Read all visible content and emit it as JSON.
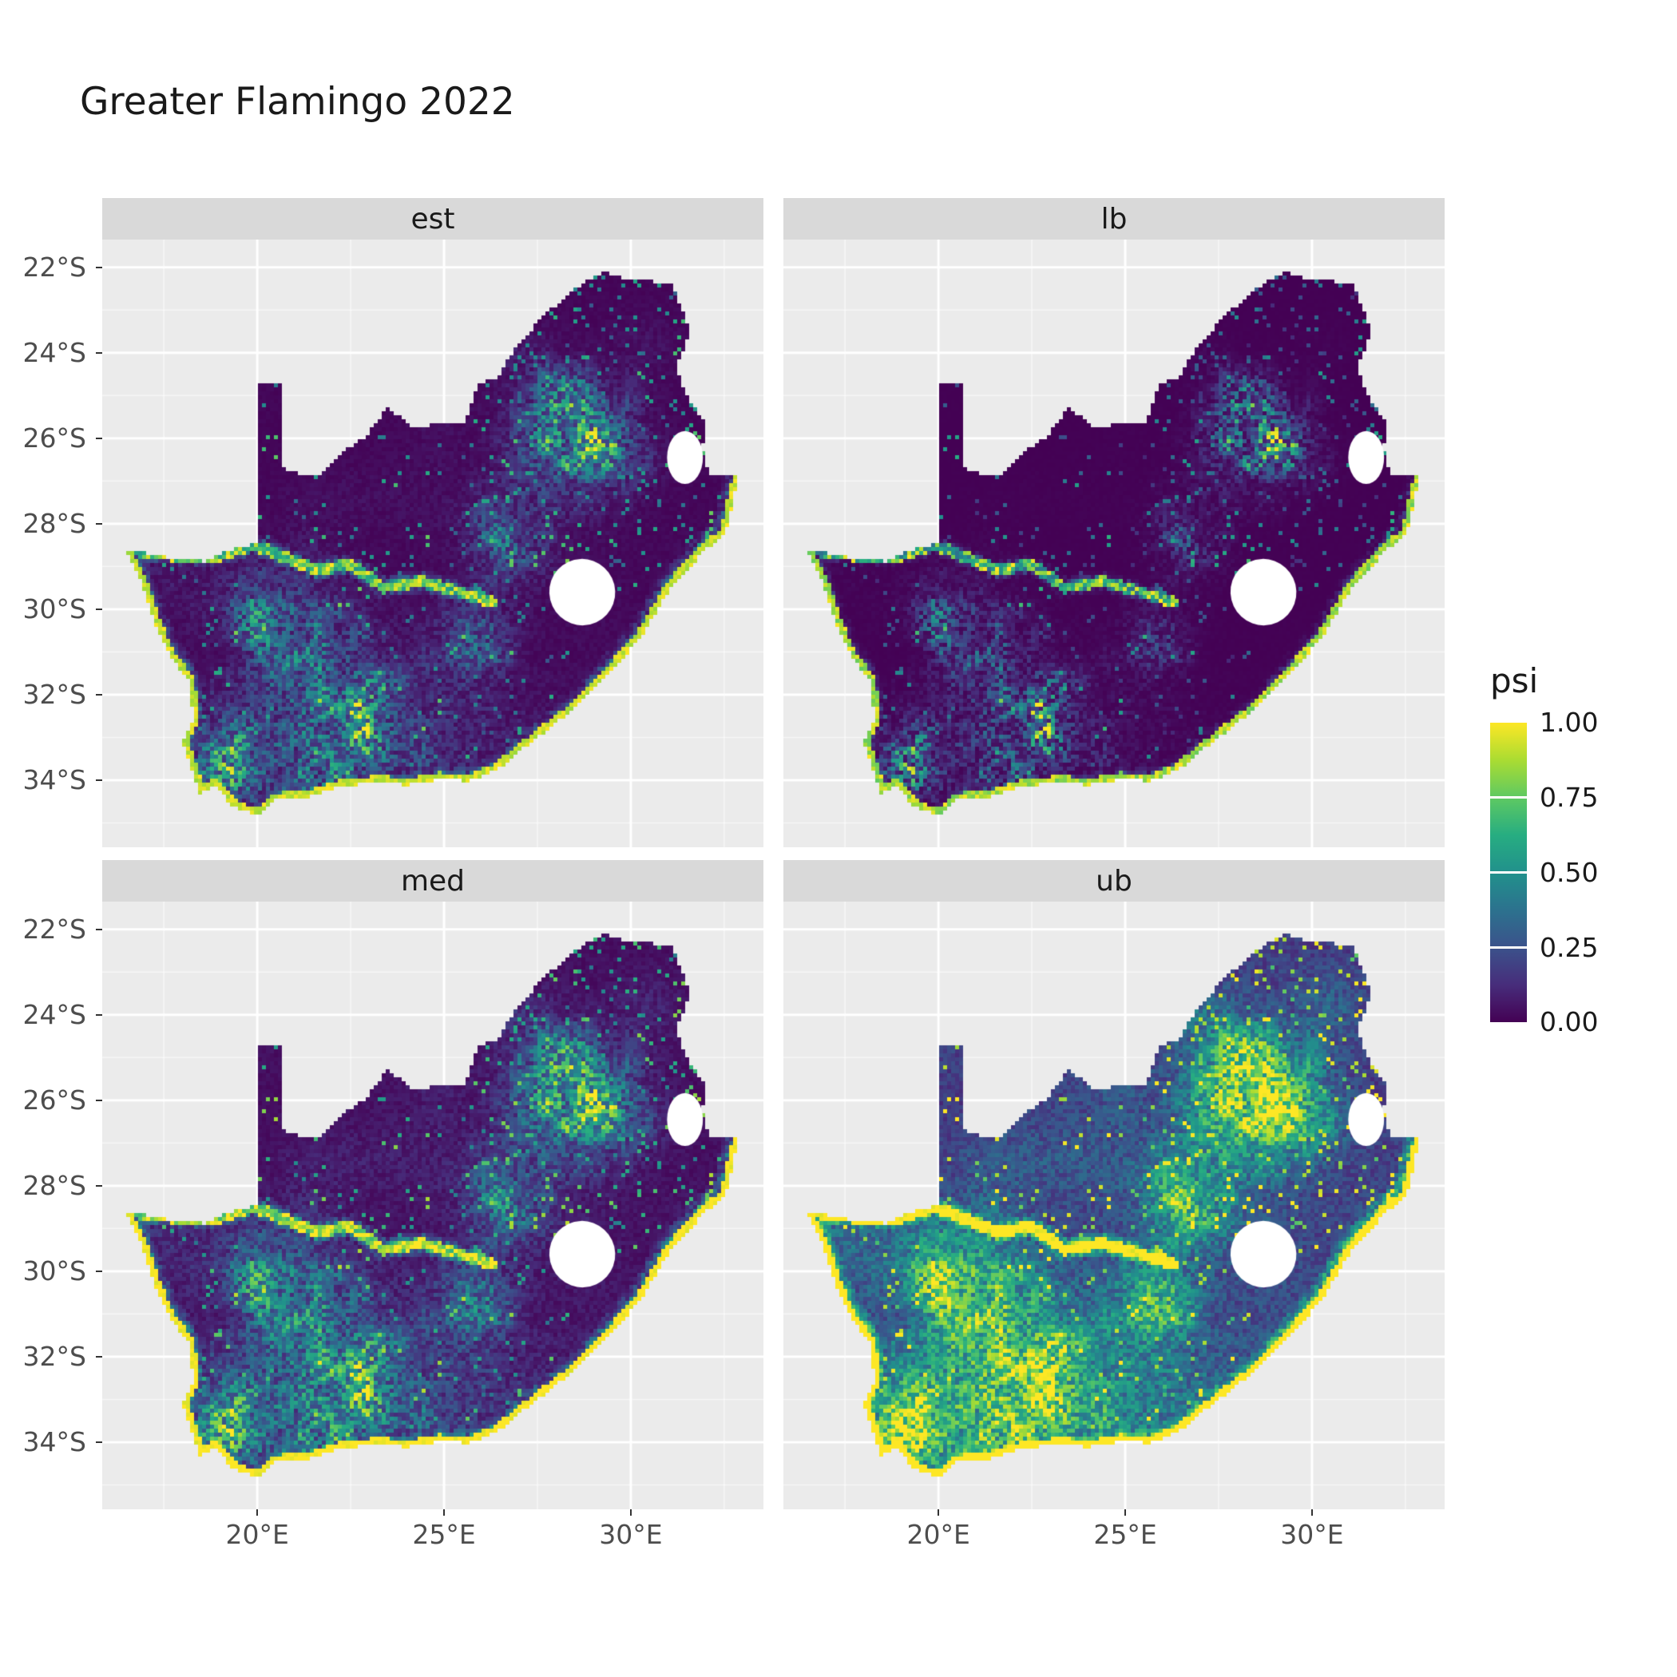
{
  "title": "Greater Flamingo 2022",
  "facets": [
    {
      "key": "est",
      "label": "est"
    },
    {
      "key": "lb",
      "label": "lb"
    },
    {
      "key": "med",
      "label": "med"
    },
    {
      "key": "ub",
      "label": "ub"
    }
  ],
  "legend": {
    "title": "psi",
    "ticks": [
      "1.00",
      "0.75",
      "0.50",
      "0.25",
      "0.00"
    ],
    "values": [
      1,
      0.75,
      0.5,
      0.25,
      0
    ]
  },
  "chart_data": {
    "type": "heatmap",
    "title": "Greater Flamingo 2022",
    "facet_labels": [
      "est",
      "lb",
      "med",
      "ub"
    ],
    "variable": "psi",
    "region": "South Africa occupancy raster",
    "x": {
      "axis": "longitude",
      "tick_labels": [
        "20°E",
        "25°E",
        "30°E"
      ],
      "tick_values": [
        20,
        25,
        30
      ],
      "minor_values": [
        17.5,
        22.5,
        27.5,
        32.5
      ],
      "range": [
        15.85,
        33.55
      ]
    },
    "y": {
      "axis": "latitude",
      "tick_labels": [
        "22°S",
        "24°S",
        "26°S",
        "28°S",
        "30°S",
        "32°S",
        "34°S"
      ],
      "tick_values": [
        -22,
        -24,
        -26,
        -28,
        -30,
        -32,
        -34
      ],
      "minor_values": [
        -23,
        -25,
        -27,
        -29,
        -31,
        -33,
        -35
      ],
      "range": [
        -35.57,
        -21.35
      ]
    },
    "legend": {
      "title": "psi",
      "tick_labels": [
        "1.00",
        "0.75",
        "0.50",
        "0.25",
        "0.00"
      ],
      "tick_values": [
        1,
        0.75,
        0.5,
        0.25,
        0
      ],
      "range": [
        0,
        1
      ],
      "position": "right"
    },
    "grid": true,
    "colors": {
      "viridis": [
        "#440154",
        "#472d7b",
        "#3b528b",
        "#2c728e",
        "#21918c",
        "#27ad81",
        "#5ec962",
        "#aadc32",
        "#fde725"
      ],
      "panel_bg": "#EBEBEB",
      "strip_bg": "#D9D9D9",
      "grid_major": "#FFFFFF",
      "grid_minor": "rgba(255,255,255,0.6)",
      "axis_text": "#4D4D4D",
      "text": "#1A1A1A",
      "hole_fill": "#FFFFFF",
      "page_bg": "#FFFFFF",
      "tick": "#333333"
    },
    "facet_transforms": {
      "est": {
        "gain": 1.0,
        "gamma": 1.35
      },
      "lb": {
        "gain": 1.0,
        "gamma": 2.2
      },
      "med": {
        "gain": 1.08,
        "gamma": 1.05
      },
      "ub": {
        "gain": 1.25,
        "gamma": 0.6
      }
    },
    "noise": {
      "n1_scale": 1.8,
      "n2_scale": 0.55,
      "speckle_threshold": 0.972,
      "speckle_threshold_ne": 0.94
    },
    "map": {
      "outline": [
        [
          19.99,
          -24.72
        ],
        [
          20.65,
          -24.72
        ],
        [
          20.68,
          -25.5
        ],
        [
          20.65,
          -26.6
        ],
        [
          20.85,
          -26.8
        ],
        [
          21.7,
          -26.85
        ],
        [
          22.25,
          -26.35
        ],
        [
          22.9,
          -25.95
        ],
        [
          23.5,
          -25.28
        ],
        [
          24.2,
          -25.75
        ],
        [
          25.1,
          -25.62
        ],
        [
          25.58,
          -25.62
        ],
        [
          25.9,
          -24.72
        ],
        [
          26.45,
          -24.6
        ],
        [
          26.85,
          -23.95
        ],
        [
          27.6,
          -23.2
        ],
        [
          28.35,
          -22.6
        ],
        [
          29.25,
          -22.1
        ],
        [
          29.9,
          -22.3
        ],
        [
          31.1,
          -22.35
        ],
        [
          31.6,
          -23.55
        ],
        [
          31.2,
          -24.3
        ],
        [
          31.55,
          -25.1
        ],
        [
          31.98,
          -25.65
        ],
        [
          31.92,
          -26.3
        ],
        [
          32.12,
          -26.85
        ],
        [
          32.9,
          -26.85
        ],
        [
          32.55,
          -28.2
        ],
        [
          32.0,
          -28.62
        ],
        [
          31.1,
          -29.45
        ],
        [
          30.25,
          -30.7
        ],
        [
          29.35,
          -31.55
        ],
        [
          28.55,
          -32.3
        ],
        [
          27.35,
          -33.1
        ],
        [
          26.4,
          -33.78
        ],
        [
          25.65,
          -34.02
        ],
        [
          24.9,
          -33.98
        ],
        [
          24.0,
          -34.12
        ],
        [
          23.3,
          -34.05
        ],
        [
          22.2,
          -34.15
        ],
        [
          21.3,
          -34.42
        ],
        [
          20.5,
          -34.46
        ],
        [
          20.0,
          -34.82
        ],
        [
          19.35,
          -34.62
        ],
        [
          18.85,
          -34.12
        ],
        [
          18.45,
          -34.35
        ],
        [
          18.3,
          -33.9
        ],
        [
          18.0,
          -33.1
        ],
        [
          18.3,
          -32.55
        ],
        [
          18.15,
          -31.65
        ],
        [
          17.6,
          -31.0
        ],
        [
          17.2,
          -30.2
        ],
        [
          16.9,
          -29.4
        ],
        [
          16.48,
          -28.6
        ],
        [
          17.6,
          -28.78
        ],
        [
          18.6,
          -28.88
        ],
        [
          19.3,
          -28.6
        ],
        [
          19.99,
          -28.45
        ]
      ],
      "coast": [
        [
          32.9,
          -26.85
        ],
        [
          32.55,
          -28.2
        ],
        [
          32.0,
          -28.62
        ],
        [
          31.1,
          -29.45
        ],
        [
          30.25,
          -30.7
        ],
        [
          29.35,
          -31.55
        ],
        [
          28.55,
          -32.3
        ],
        [
          27.35,
          -33.1
        ],
        [
          26.4,
          -33.78
        ],
        [
          25.65,
          -34.02
        ],
        [
          24.9,
          -33.98
        ],
        [
          24.0,
          -34.12
        ],
        [
          23.3,
          -34.05
        ],
        [
          22.2,
          -34.15
        ],
        [
          21.3,
          -34.42
        ],
        [
          20.5,
          -34.46
        ],
        [
          20.0,
          -34.82
        ],
        [
          19.35,
          -34.62
        ],
        [
          18.85,
          -34.12
        ],
        [
          18.45,
          -34.35
        ],
        [
          18.3,
          -33.9
        ],
        [
          18.0,
          -33.1
        ],
        [
          18.3,
          -32.55
        ],
        [
          18.15,
          -31.65
        ],
        [
          17.6,
          -31.0
        ],
        [
          17.2,
          -30.2
        ],
        [
          16.9,
          -29.4
        ],
        [
          16.48,
          -28.6
        ]
      ],
      "river": [
        [
          16.6,
          -28.62
        ],
        [
          17.8,
          -28.75
        ],
        [
          19.0,
          -28.75
        ],
        [
          19.9,
          -28.5
        ],
        [
          20.8,
          -28.8
        ],
        [
          21.6,
          -29.1
        ],
        [
          22.5,
          -28.95
        ],
        [
          23.4,
          -29.5
        ],
        [
          24.4,
          -29.35
        ],
        [
          25.4,
          -29.6
        ],
        [
          26.3,
          -29.85
        ]
      ],
      "hotspots": [
        [
          28.35,
          -26.05,
          1.0,
          0.85
        ],
        [
          29.6,
          -26.2,
          0.7,
          0.5
        ],
        [
          26.6,
          -28.4,
          0.75,
          0.6
        ],
        [
          25.8,
          -30.9,
          0.9,
          0.5
        ],
        [
          20.3,
          -30.3,
          0.85,
          0.7
        ],
        [
          22.2,
          -31.4,
          1.1,
          0.55
        ],
        [
          22.7,
          -33.2,
          1.0,
          0.65
        ],
        [
          19.3,
          -33.6,
          0.8,
          0.5
        ],
        [
          27.9,
          -24.9,
          0.6,
          0.35
        ]
      ],
      "south_band": {
        "start": -31.0,
        "scale": 3.0,
        "amp": 0.38,
        "lon_fade_start": 27.5,
        "lon_fade_width": 6
      },
      "holes": [
        {
          "name": "lesotho",
          "cx": 28.7,
          "cy": -29.6,
          "rx": 0.88,
          "ry": 0.78,
          "rot": -25
        },
        {
          "name": "eswatini",
          "cx": 31.45,
          "cy": -26.45,
          "rx": 0.48,
          "ry": 0.62,
          "rot": 0
        }
      ]
    }
  }
}
